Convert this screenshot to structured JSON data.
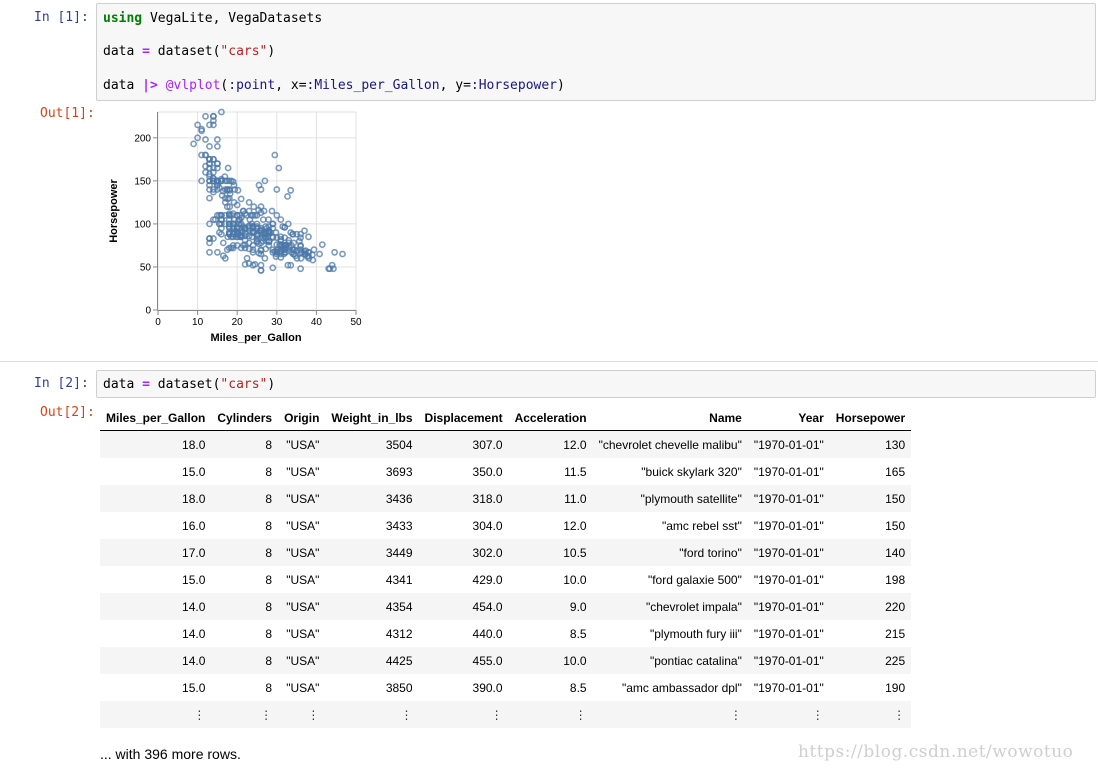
{
  "cells": [
    {
      "in_prompt": "In  [1]:",
      "code": {
        "line1": {
          "kw": "using",
          "rest": " VegaLite, VegaDatasets"
        },
        "line2": {
          "var": "data ",
          "eq": "=",
          "func": " dataset(",
          "str": "\"cars\"",
          "close": ")"
        },
        "line3": {
          "var": "data ",
          "pipe": "|>",
          "sp": " ",
          "macro": "@vlplot",
          "args1": "(",
          "sym1": ":point",
          "args2": ", x=",
          "sym2": ":Miles_per_Gallon",
          "args3": ", y=",
          "sym3": ":Horsepower",
          "args4": ")"
        }
      },
      "out_prompt": "Out[1]:"
    },
    {
      "in_prompt": "In  [2]:",
      "code": {
        "var": "data ",
        "eq": "=",
        "func": " dataset(",
        "str": "\"cars\"",
        "close": ")"
      },
      "out_prompt": "Out[2]:"
    }
  ],
  "chart_data": {
    "type": "scatter",
    "xlabel": "Miles_per_Gallon",
    "ylabel": "Horsepower",
    "xlim": [
      0,
      50
    ],
    "ylim": [
      0,
      230
    ],
    "xticks": [
      0,
      10,
      20,
      30,
      40,
      50
    ],
    "yticks": [
      0,
      50,
      100,
      150,
      200
    ],
    "grid": true,
    "color": "#4c78a8",
    "points": [
      [
        18,
        130
      ],
      [
        15,
        165
      ],
      [
        18,
        150
      ],
      [
        16,
        150
      ],
      [
        17,
        140
      ],
      [
        15,
        198
      ],
      [
        14,
        220
      ],
      [
        14,
        215
      ],
      [
        14,
        225
      ],
      [
        15,
        190
      ],
      [
        15,
        170
      ],
      [
        14,
        160
      ],
      [
        15,
        150
      ],
      [
        14,
        225
      ],
      [
        24,
        95
      ],
      [
        22,
        95
      ],
      [
        18,
        97
      ],
      [
        21,
        85
      ],
      [
        27,
        88
      ],
      [
        26,
        46
      ],
      [
        25,
        87
      ],
      [
        24,
        90
      ],
      [
        25,
        95
      ],
      [
        26,
        113
      ],
      [
        21,
        90
      ],
      [
        10,
        215
      ],
      [
        10,
        200
      ],
      [
        11,
        210
      ],
      [
        9,
        193
      ],
      [
        27,
        88
      ],
      [
        28,
        90
      ],
      [
        25,
        95
      ],
      [
        19,
        100
      ],
      [
        16,
        105
      ],
      [
        17,
        100
      ],
      [
        19,
        88
      ],
      [
        18,
        100
      ],
      [
        14,
        165
      ],
      [
        14,
        175
      ],
      [
        14,
        153
      ],
      [
        14,
        150
      ],
      [
        12,
        180
      ],
      [
        13,
        170
      ],
      [
        13,
        175
      ],
      [
        18,
        110
      ],
      [
        22,
        72
      ],
      [
        19,
        100
      ],
      [
        18,
        88
      ],
      [
        23,
        86
      ],
      [
        28,
        90
      ],
      [
        30,
        70
      ],
      [
        30,
        76
      ],
      [
        31,
        65
      ],
      [
        35,
        69
      ],
      [
        27,
        60
      ],
      [
        26,
        70
      ],
      [
        24,
        95
      ],
      [
        25,
        80
      ],
      [
        23,
        54
      ],
      [
        20,
        90
      ],
      [
        21,
        86
      ],
      [
        13,
        165
      ],
      [
        14,
        175
      ],
      [
        15,
        150
      ],
      [
        14,
        153
      ],
      [
        17,
        150
      ],
      [
        11,
        208
      ],
      [
        13,
        155
      ],
      [
        12,
        160
      ],
      [
        13,
        190
      ],
      [
        19,
        97
      ],
      [
        15,
        150
      ],
      [
        13,
        130
      ],
      [
        13,
        140
      ],
      [
        14,
        150
      ],
      [
        18,
        112
      ],
      [
        22,
        76
      ],
      [
        21,
        87
      ],
      [
        26,
        69
      ],
      [
        22,
        86
      ],
      [
        28,
        92
      ],
      [
        23,
        97
      ],
      [
        28,
        80
      ],
      [
        27,
        88
      ],
      [
        13,
        175
      ],
      [
        14,
        150
      ],
      [
        13,
        145
      ],
      [
        14,
        137
      ],
      [
        15,
        150
      ],
      [
        12,
        198
      ],
      [
        13,
        150
      ],
      [
        13,
        158
      ],
      [
        14,
        150
      ],
      [
        13,
        215
      ],
      [
        12,
        225
      ],
      [
        13,
        175
      ],
      [
        18,
        105
      ],
      [
        16,
        100
      ],
      [
        18,
        100
      ],
      [
        18,
        88
      ],
      [
        23,
        95
      ],
      [
        26,
        46
      ],
      [
        11,
        150
      ],
      [
        12,
        167
      ],
      [
        13,
        170
      ],
      [
        12,
        180
      ],
      [
        18,
        100
      ],
      [
        20,
        88
      ],
      [
        21,
        72
      ],
      [
        22,
        94
      ],
      [
        18,
        90
      ],
      [
        19,
        85
      ],
      [
        21,
        107
      ],
      [
        26,
        90
      ],
      [
        15,
        145
      ],
      [
        16,
        230
      ],
      [
        29,
        49
      ],
      [
        24,
        75
      ],
      [
        20,
        91
      ],
      [
        19,
        112
      ],
      [
        15,
        150
      ],
      [
        24,
        110
      ],
      [
        20,
        122
      ],
      [
        11,
        180
      ],
      [
        20,
        95
      ],
      [
        21,
        100
      ],
      [
        19,
        100
      ],
      [
        15,
        67
      ],
      [
        31,
        80
      ],
      [
        26,
        65
      ],
      [
        32,
        75
      ],
      [
        25,
        100
      ],
      [
        16,
        110
      ],
      [
        16,
        105
      ],
      [
        18,
        140
      ],
      [
        16,
        150
      ],
      [
        13,
        150
      ],
      [
        14,
        140
      ],
      [
        14,
        150
      ],
      [
        14,
        83
      ],
      [
        29,
        67
      ],
      [
        26,
        78
      ],
      [
        26,
        52
      ],
      [
        31,
        61
      ],
      [
        32,
        75
      ],
      [
        28,
        75
      ],
      [
        24,
        97
      ],
      [
        26,
        93
      ],
      [
        24,
        67
      ],
      [
        26,
        95
      ],
      [
        31,
        105
      ],
      [
        19,
        72
      ],
      [
        18,
        72
      ],
      [
        15,
        170
      ],
      [
        15,
        145
      ],
      [
        16,
        150
      ],
      [
        15,
        148
      ],
      [
        16,
        110
      ],
      [
        14,
        105
      ],
      [
        17,
        110
      ],
      [
        16,
        95
      ],
      [
        15,
        110
      ],
      [
        18,
        110
      ],
      [
        21,
        129
      ],
      [
        20,
        75
      ],
      [
        13,
        83
      ],
      [
        29,
        100
      ],
      [
        23,
        78
      ],
      [
        20,
        96
      ],
      [
        23,
        71
      ],
      [
        24,
        97
      ],
      [
        25,
        97
      ],
      [
        24,
        70
      ],
      [
        18,
        90
      ],
      [
        29,
        95
      ],
      [
        19,
        88
      ],
      [
        23,
        98
      ],
      [
        23,
        115
      ],
      [
        22,
        53
      ],
      [
        25,
        86
      ],
      [
        33,
        81
      ],
      [
        28,
        92
      ],
      [
        25,
        79
      ],
      [
        25,
        83
      ],
      [
        26,
        140
      ],
      [
        27,
        150
      ],
      [
        17.5,
        120
      ],
      [
        16,
        152
      ],
      [
        15.5,
        100
      ],
      [
        14.5,
        105
      ],
      [
        22,
        81
      ],
      [
        22,
        90
      ],
      [
        24,
        52
      ],
      [
        22.5,
        60
      ],
      [
        29,
        70
      ],
      [
        24.5,
        53
      ],
      [
        29,
        100
      ],
      [
        33,
        78
      ],
      [
        20,
        110
      ],
      [
        18,
        95
      ],
      [
        18.5,
        72
      ],
      [
        17.5,
        150
      ],
      [
        29.5,
        180
      ],
      [
        32,
        96
      ],
      [
        28,
        97
      ],
      [
        26.5,
        80
      ],
      [
        20,
        88
      ],
      [
        13,
        100
      ],
      [
        19,
        149
      ],
      [
        19,
        75
      ],
      [
        16.5,
        78
      ],
      [
        16.5,
        63
      ],
      [
        13,
        83
      ],
      [
        13,
        67
      ],
      [
        13,
        78
      ],
      [
        31.5,
        97
      ],
      [
        30,
        110
      ],
      [
        36,
        48
      ],
      [
        25.5,
        66
      ],
      [
        33.5,
        52
      ],
      [
        17.5,
        70
      ],
      [
        17,
        60
      ],
      [
        15.5,
        110
      ],
      [
        15,
        140
      ],
      [
        17.5,
        139
      ],
      [
        20.5,
        105
      ],
      [
        19,
        95
      ],
      [
        18.5,
        85
      ],
      [
        16,
        88
      ],
      [
        15.5,
        100
      ],
      [
        15.5,
        90
      ],
      [
        16,
        105
      ],
      [
        29,
        85
      ],
      [
        24.5,
        110
      ],
      [
        26,
        120
      ],
      [
        25.5,
        145
      ],
      [
        30.5,
        165
      ],
      [
        33.5,
        139
      ],
      [
        30,
        140
      ],
      [
        30.5,
        68
      ],
      [
        22,
        95
      ],
      [
        21.5,
        97
      ],
      [
        21.5,
        75
      ],
      [
        43.1,
        48
      ],
      [
        36.1,
        66
      ],
      [
        32.8,
        52
      ],
      [
        39.4,
        70
      ],
      [
        36.1,
        60
      ],
      [
        19.9,
        110
      ],
      [
        19.4,
        140
      ],
      [
        20.2,
        139
      ],
      [
        19.2,
        105
      ],
      [
        20.5,
        95
      ],
      [
        20.2,
        85
      ],
      [
        25.1,
        88
      ],
      [
        20.5,
        100
      ],
      [
        19.4,
        90
      ],
      [
        20.6,
        105
      ],
      [
        20.8,
        85
      ],
      [
        18.6,
        110
      ],
      [
        18.1,
        120
      ],
      [
        19.2,
        145
      ],
      [
        17.7,
        165
      ],
      [
        18.1,
        139
      ],
      [
        17.5,
        140
      ],
      [
        30,
        68
      ],
      [
        27.5,
        95
      ],
      [
        27.2,
        97
      ],
      [
        30.9,
        75
      ],
      [
        21.1,
        95
      ],
      [
        23.2,
        105
      ],
      [
        23.8,
        85
      ],
      [
        23.9,
        97
      ],
      [
        20.3,
        103
      ],
      [
        17,
        125
      ],
      [
        21.6,
        115
      ],
      [
        16.2,
        133
      ],
      [
        31.5,
        71
      ],
      [
        29.5,
        68
      ],
      [
        21.5,
        115
      ],
      [
        19.8,
        85
      ],
      [
        22.3,
        88
      ],
      [
        20.2,
        90
      ],
      [
        20.6,
        110
      ],
      [
        17,
        130
      ],
      [
        17.6,
        129
      ],
      [
        16.5,
        138
      ],
      [
        18.2,
        135
      ],
      [
        16.9,
        155
      ],
      [
        15.5,
        142
      ],
      [
        19.2,
        125
      ],
      [
        18.5,
        150
      ],
      [
        31.9,
        71
      ],
      [
        34.1,
        65
      ],
      [
        35.7,
        80
      ],
      [
        27.4,
        80
      ],
      [
        25.4,
        77
      ],
      [
        23,
        125
      ],
      [
        27.2,
        71
      ],
      [
        23.9,
        90
      ],
      [
        34.2,
        70
      ],
      [
        34.5,
        70
      ],
      [
        31.8,
        65
      ],
      [
        37.3,
        69
      ],
      [
        28.4,
        90
      ],
      [
        28.8,
        115
      ],
      [
        26.8,
        115
      ],
      [
        33.5,
        90
      ],
      [
        41.5,
        76
      ],
      [
        38.1,
        60
      ],
      [
        32.1,
        70
      ],
      [
        37.2,
        65
      ],
      [
        28,
        90
      ],
      [
        26.4,
        88
      ],
      [
        24.3,
        90
      ],
      [
        19.1,
        90
      ],
      [
        34.3,
        78
      ],
      [
        29.8,
        90
      ],
      [
        31.3,
        75
      ],
      [
        37,
        92
      ],
      [
        32.2,
        75
      ],
      [
        46.6,
        65
      ],
      [
        27.9,
        105
      ],
      [
        40.8,
        65
      ],
      [
        44.3,
        48
      ],
      [
        43.4,
        48
      ],
      [
        36.4,
        67
      ],
      [
        30,
        67
      ],
      [
        44.6,
        67
      ],
      [
        33.8,
        67
      ],
      [
        29.8,
        62
      ],
      [
        32.7,
        132
      ],
      [
        23.7,
        100
      ],
      [
        35,
        88
      ],
      [
        32.4,
        72
      ],
      [
        27.2,
        84
      ],
      [
        26.6,
        84
      ],
      [
        25.8,
        92
      ],
      [
        23.5,
        110
      ],
      [
        30,
        84
      ],
      [
        39.1,
        58
      ],
      [
        39,
        64
      ],
      [
        35.1,
        60
      ],
      [
        32.3,
        67
      ],
      [
        37,
        65
      ],
      [
        37.7,
        62
      ],
      [
        34.1,
        88
      ],
      [
        34.7,
        63
      ],
      [
        34.4,
        65
      ],
      [
        29.9,
        65
      ],
      [
        33,
        74
      ],
      [
        33.7,
        75
      ],
      [
        32.4,
        75
      ],
      [
        32.9,
        100
      ],
      [
        31.6,
        74
      ],
      [
        28.1,
        80
      ],
      [
        30.7,
        76
      ],
      [
        25.4,
        116
      ],
      [
        24.2,
        120
      ],
      [
        22.4,
        110
      ],
      [
        26.6,
        105
      ],
      [
        20.2,
        88
      ],
      [
        17.6,
        85
      ],
      [
        28,
        88
      ],
      [
        27,
        88
      ],
      [
        34,
        88
      ],
      [
        31,
        85
      ],
      [
        29,
        84
      ],
      [
        27,
        90
      ],
      [
        24,
        92
      ],
      [
        36,
        74
      ],
      [
        37,
        68
      ],
      [
        31,
        68
      ],
      [
        38,
        63
      ],
      [
        36,
        70
      ],
      [
        36,
        88
      ],
      [
        36,
        75
      ],
      [
        34,
        70
      ],
      [
        38,
        67
      ],
      [
        32,
        67
      ],
      [
        38,
        67
      ],
      [
        25,
        110
      ],
      [
        38,
        85
      ],
      [
        26,
        92
      ],
      [
        22,
        112
      ],
      [
        32,
        96
      ],
      [
        36,
        84
      ],
      [
        27,
        90
      ],
      [
        27,
        86
      ],
      [
        44,
        52
      ],
      [
        32,
        84
      ],
      [
        28,
        79
      ],
      [
        31,
        82
      ]
    ]
  },
  "table": {
    "columns": [
      "Miles_per_Gallon",
      "Cylinders",
      "Origin",
      "Weight_in_lbs",
      "Displacement",
      "Acceleration",
      "Name",
      "Year",
      "Horsepower"
    ],
    "rows": [
      [
        "18.0",
        "8",
        "\"USA\"",
        "3504",
        "307.0",
        "12.0",
        "\"chevrolet chevelle malibu\"",
        "\"1970-01-01\"",
        "130"
      ],
      [
        "15.0",
        "8",
        "\"USA\"",
        "3693",
        "350.0",
        "11.5",
        "\"buick skylark 320\"",
        "\"1970-01-01\"",
        "165"
      ],
      [
        "18.0",
        "8",
        "\"USA\"",
        "3436",
        "318.0",
        "11.0",
        "\"plymouth satellite\"",
        "\"1970-01-01\"",
        "150"
      ],
      [
        "16.0",
        "8",
        "\"USA\"",
        "3433",
        "304.0",
        "12.0",
        "\"amc rebel sst\"",
        "\"1970-01-01\"",
        "150"
      ],
      [
        "17.0",
        "8",
        "\"USA\"",
        "3449",
        "302.0",
        "10.5",
        "\"ford torino\"",
        "\"1970-01-01\"",
        "140"
      ],
      [
        "15.0",
        "8",
        "\"USA\"",
        "4341",
        "429.0",
        "10.0",
        "\"ford galaxie 500\"",
        "\"1970-01-01\"",
        "198"
      ],
      [
        "14.0",
        "8",
        "\"USA\"",
        "4354",
        "454.0",
        "9.0",
        "\"chevrolet impala\"",
        "\"1970-01-01\"",
        "220"
      ],
      [
        "14.0",
        "8",
        "\"USA\"",
        "4312",
        "440.0",
        "8.5",
        "\"plymouth fury iii\"",
        "\"1970-01-01\"",
        "215"
      ],
      [
        "14.0",
        "8",
        "\"USA\"",
        "4425",
        "455.0",
        "10.0",
        "\"pontiac catalina\"",
        "\"1970-01-01\"",
        "225"
      ],
      [
        "15.0",
        "8",
        "\"USA\"",
        "3850",
        "390.0",
        "8.5",
        "\"amc ambassador dpl\"",
        "\"1970-01-01\"",
        "190"
      ]
    ],
    "ellipsis": "⋮",
    "more_rows": "... with 396 more rows."
  },
  "watermark": "https://blog.csdn.net/wowotuo"
}
